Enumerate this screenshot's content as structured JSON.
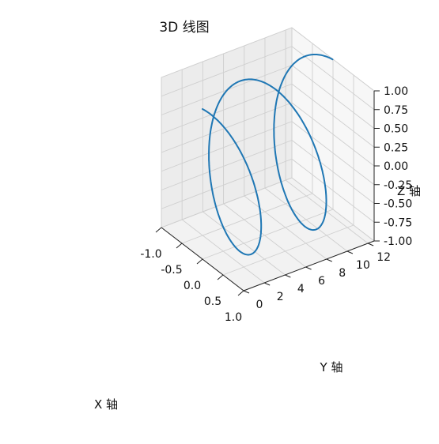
{
  "chart_data": {
    "type": "line3d",
    "title": "3D 线图",
    "xlabel": "X 轴",
    "ylabel": "Y 轴",
    "zlabel": "Z 轴",
    "grid": true,
    "xlim": [
      -1.0,
      1.0
    ],
    "ylim": [
      0,
      12.6
    ],
    "zlim": [
      -1.0,
      1.0
    ],
    "x_ticks": [
      "-1.0",
      "-0.5",
      "0.0",
      "0.5",
      "1.0"
    ],
    "y_ticks": [
      "0",
      "2",
      "4",
      "6",
      "8",
      "10",
      "12"
    ],
    "z_ticks": [
      "-1.00",
      "-0.75",
      "-0.50",
      "-0.25",
      "0.00",
      "0.25",
      "0.50",
      "0.75",
      "1.00"
    ],
    "series": [
      {
        "function": "x = sin(t), y = t, z = cos(t)",
        "t_range": [
          0,
          12.566
        ],
        "color": "#1f77b4"
      }
    ]
  }
}
